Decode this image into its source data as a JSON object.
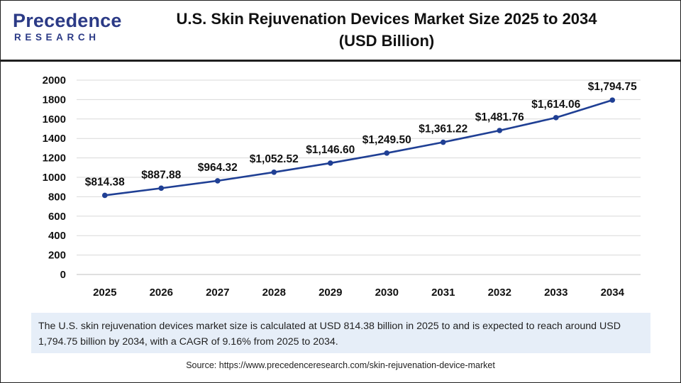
{
  "brand": {
    "logo_primary": "Precedence",
    "logo_secondary": "RESEARCH",
    "color": "#2b3a86"
  },
  "title": {
    "line1": "U.S. Skin Rejuvenation Devices Market Size 2025 to 2034",
    "line2": "(USD Billion)"
  },
  "chart_data": {
    "type": "line",
    "title": "U.S. Skin Rejuvenation Devices Market Size 2025 to 2034 (USD Billion)",
    "xlabel": "",
    "ylabel": "",
    "categories": [
      "2025",
      "2026",
      "2027",
      "2028",
      "2029",
      "2030",
      "2031",
      "2032",
      "2033",
      "2034"
    ],
    "series": [
      {
        "name": "Market Size (USD Billion)",
        "values": [
          814.38,
          887.88,
          964.32,
          1052.52,
          1146.6,
          1249.5,
          1361.22,
          1481.76,
          1614.06,
          1794.75
        ],
        "labels": [
          "$814.38",
          "$887.88",
          "$964.32",
          "$1,052.52",
          "$1,146.60",
          "$1,249.50",
          "$1,361.22",
          "$1,481.76",
          "$1,614.06",
          "$1,794.75"
        ],
        "color": "#1f3f94"
      }
    ],
    "ylim": [
      0,
      2000
    ],
    "yticks": [
      "0",
      "200",
      "400",
      "600",
      "800",
      "1000",
      "1200",
      "1400",
      "1600",
      "1800",
      "2000"
    ],
    "grid": true,
    "legend": "none"
  },
  "caption": "The U.S. skin rejuvenation devices market size is calculated at USD 814.38 billion in 2025 to and is expected to reach around USD 1,794.75 billion by 2034, with a CAGR of 9.16% from 2025 to 2034.",
  "source": "Source: https://www.precedenceresearch.com/skin-rejuvenation-device-market"
}
